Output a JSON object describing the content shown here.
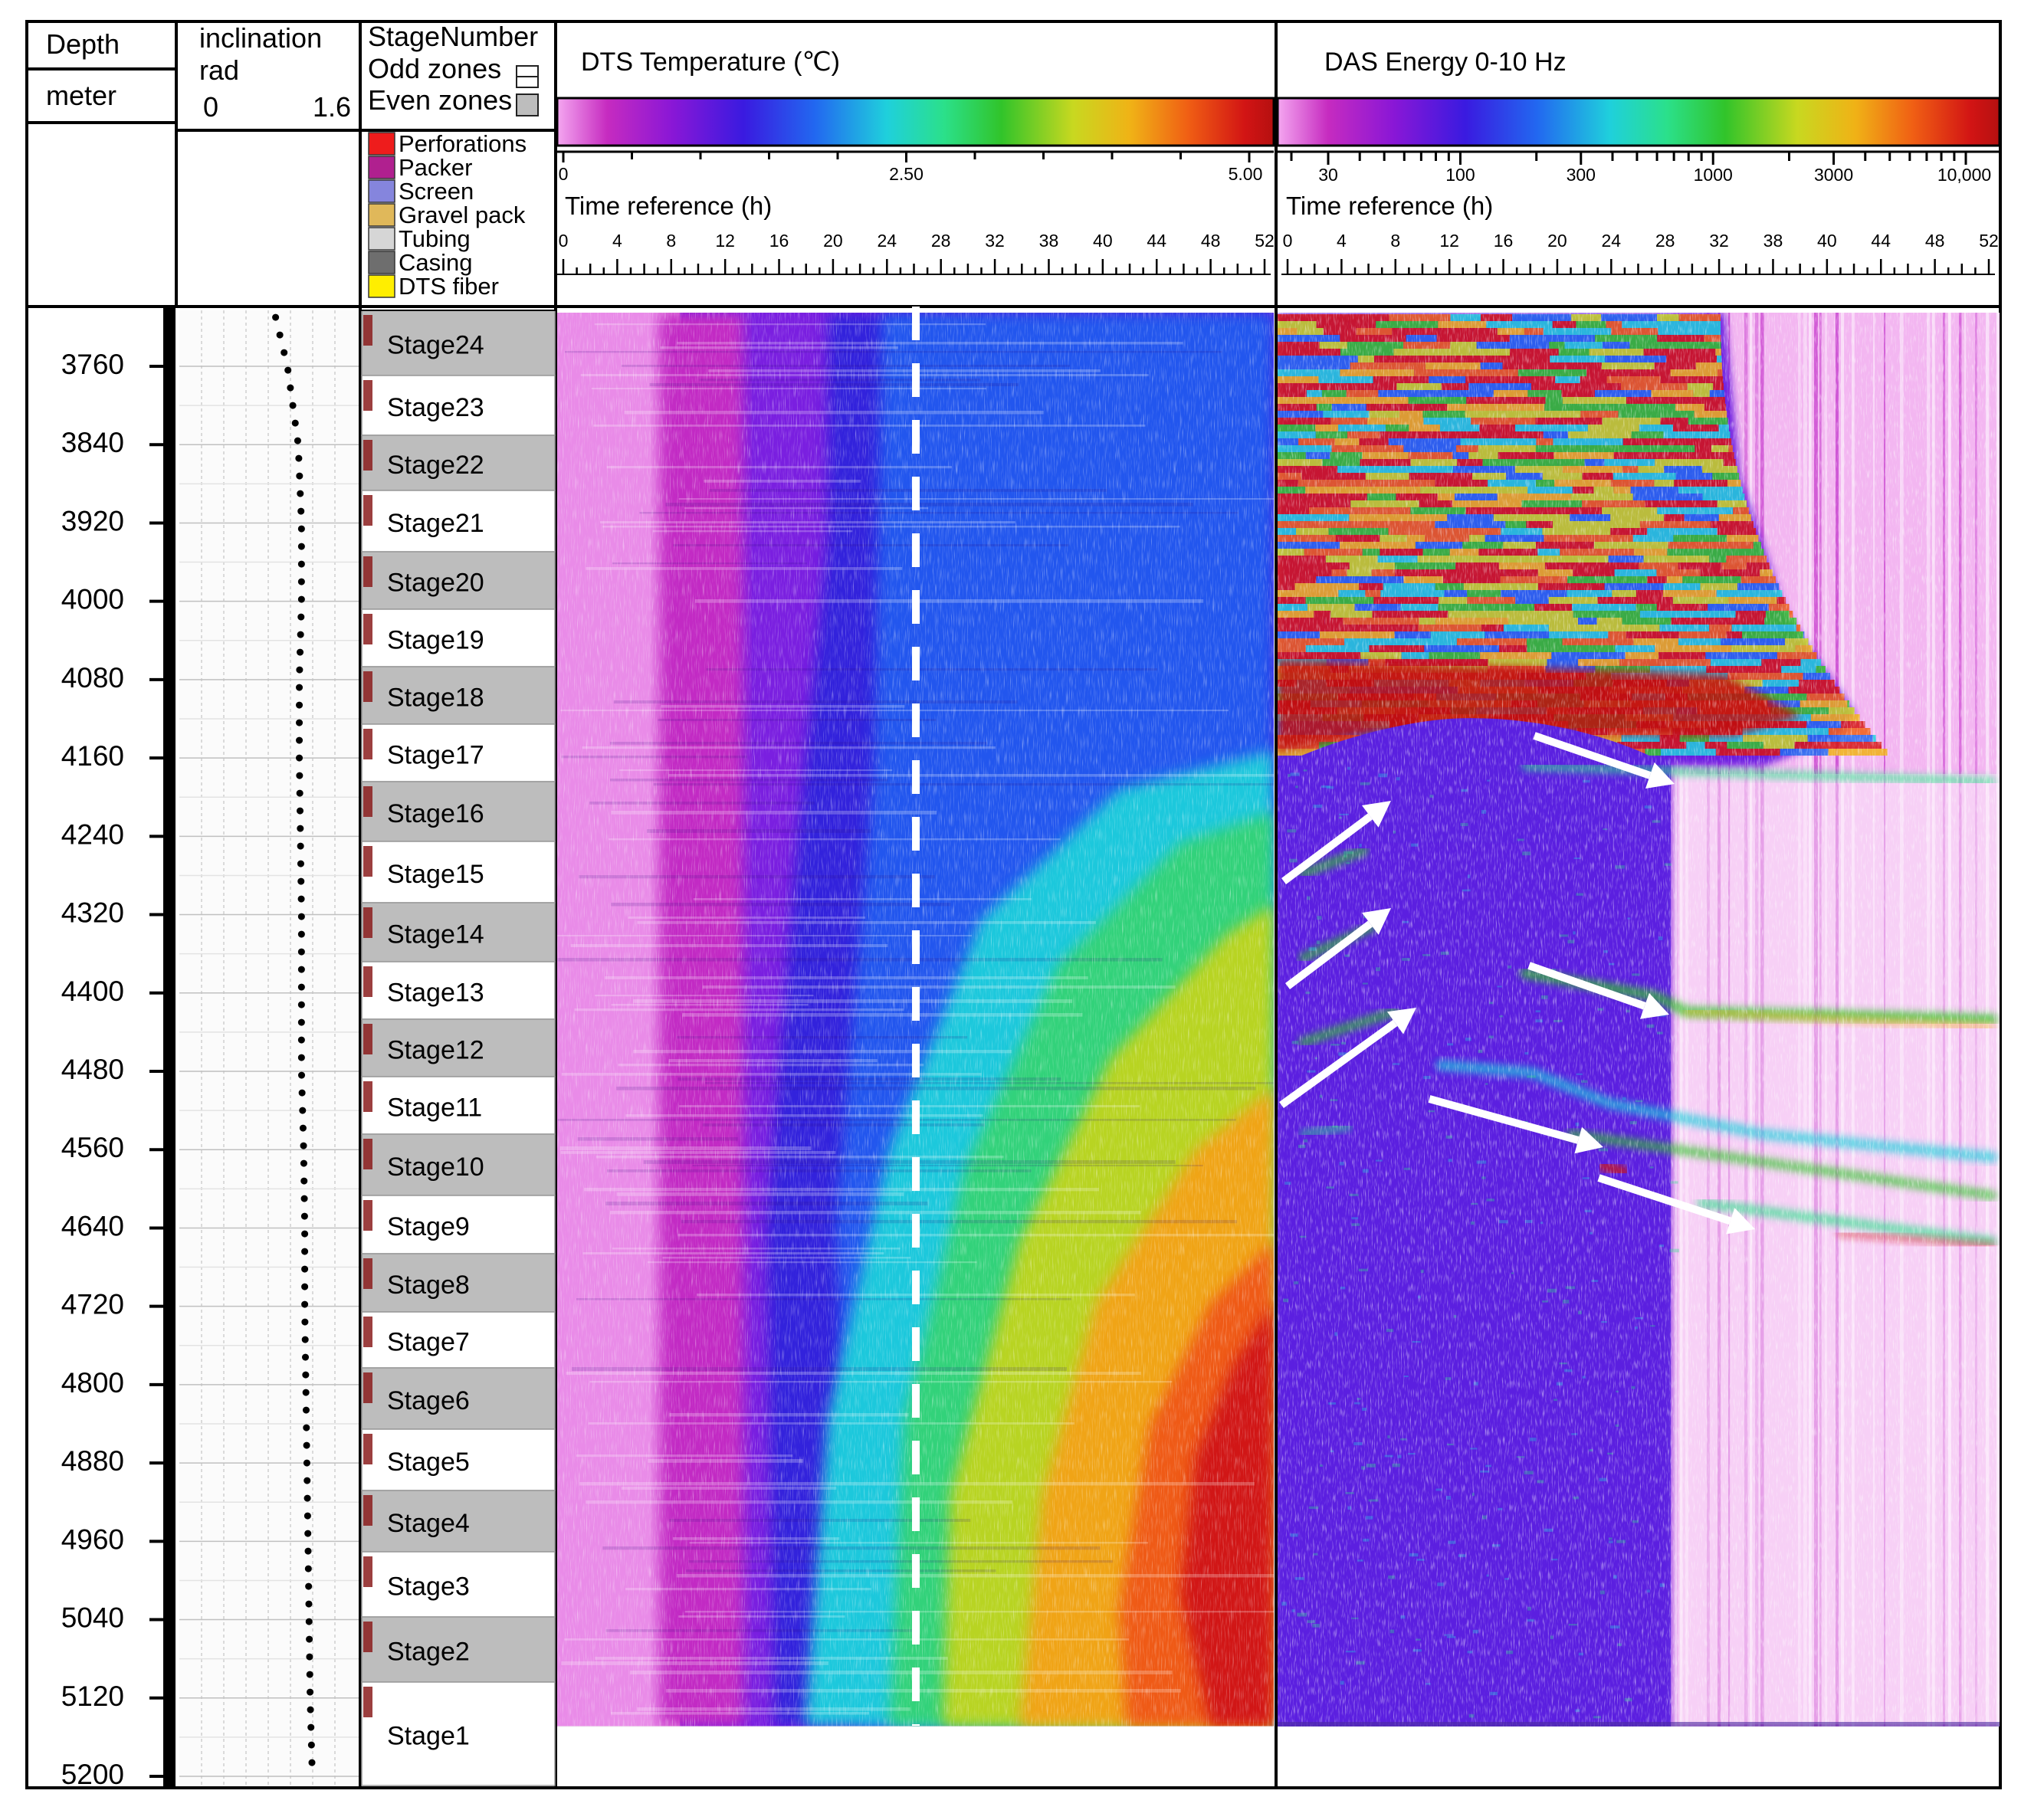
{
  "header": {
    "depth_title": "Depth",
    "depth_unit": "meter",
    "incl_title": "inclination",
    "incl_unit": "rad",
    "incl_min": "0",
    "incl_max": "1.6",
    "stage_title": "StageNumber",
    "odd_zones": "Odd zones",
    "even_zones": "Even zones",
    "dts_title": "DTS Temperature (℃)",
    "das_title": "DAS Energy 0-10 Hz",
    "time_ref": "Time reference (h)"
  },
  "legend": [
    {
      "label": "Perforations",
      "color": "#ee1c1c"
    },
    {
      "label": "Packer",
      "color": "#b0208f"
    },
    {
      "label": "Screen",
      "color": "#8585dd"
    },
    {
      "label": "Gravel pack",
      "color": "#e0b85a"
    },
    {
      "label": "Tubing",
      "color": "#d6d6d6"
    },
    {
      "label": "Casing",
      "color": "#6e6e6e"
    },
    {
      "label": "DTS fiber",
      "color": "#ffee00"
    }
  ],
  "dts_scale": [
    "0",
    "2.50",
    "5.00"
  ],
  "das_scale": [
    "30",
    "100",
    "300",
    "1000",
    "3000",
    "10,000"
  ],
  "dts_time_ticks": [
    "0",
    "4",
    "8",
    "12",
    "16",
    "20",
    "24",
    "28",
    "32",
    "38",
    "40",
    "44",
    "48",
    "52"
  ],
  "das_time_ticks": [
    "0",
    "4",
    "8",
    "12",
    "16",
    "20",
    "24",
    "28",
    "32",
    "38",
    "40",
    "44",
    "48",
    "52"
  ],
  "stages": [
    "Stage24",
    "Stage23",
    "Stage22",
    "Stage21",
    "Stage20",
    "Stage19",
    "Stage18",
    "Stage17",
    "Stage16",
    "Stage15",
    "Stage14",
    "Stage13",
    "Stage12",
    "Stage11",
    "Stage10",
    "Stage9",
    "Stage8",
    "Stage7",
    "Stage6",
    "Stage5",
    "Stage4",
    "Stage3",
    "Stage2",
    "Stage1"
  ],
  "chart_data": {
    "type": "heatmap",
    "depth_axis": {
      "ticks": [
        "3760",
        "3840",
        "3920",
        "4000",
        "4080",
        "4160",
        "4240",
        "4320",
        "4400",
        "4480",
        "4560",
        "4640",
        "4720",
        "4800",
        "4880",
        "4960",
        "5040",
        "5120",
        "5200"
      ],
      "range": [
        3705,
        5200
      ]
    },
    "inclination_track": {
      "range": [
        0,
        1.6
      ],
      "depth": [
        3705,
        3760,
        3840,
        3920,
        4000,
        4080,
        4160,
        4240,
        4320,
        4400,
        4480,
        4560,
        4640,
        4720,
        4800,
        4880,
        4960,
        5040,
        5120,
        5200
      ],
      "inclination": [
        0.85,
        0.97,
        1.07,
        1.1,
        1.1,
        1.08,
        1.08,
        1.09,
        1.1,
        1.1,
        1.1,
        1.12,
        1.13,
        1.13,
        1.14,
        1.15,
        1.16,
        1.17,
        1.18,
        1.2
      ]
    },
    "colormap": [
      "#f4a6f0",
      "#c62bc0",
      "#8a17d6",
      "#3a1ae0",
      "#2268f0",
      "#1fd0dc",
      "#2be08a",
      "#31c42a",
      "#c8d820",
      "#f0b216",
      "#f05f14",
      "#d21414",
      "#7a0a0a"
    ],
    "dts_panel": {
      "scale": {
        "min": 0,
        "max": 5.0,
        "unit": "℃"
      },
      "time_range_h": [
        0,
        52
      ],
      "marker_time_h": 26
    },
    "das_panel": {
      "scale": {
        "min": 30,
        "max": 10000,
        "type": "log"
      },
      "time_range_h": [
        0,
        52
      ],
      "no_data_band_depth": [
        5130,
        5200
      ]
    }
  }
}
